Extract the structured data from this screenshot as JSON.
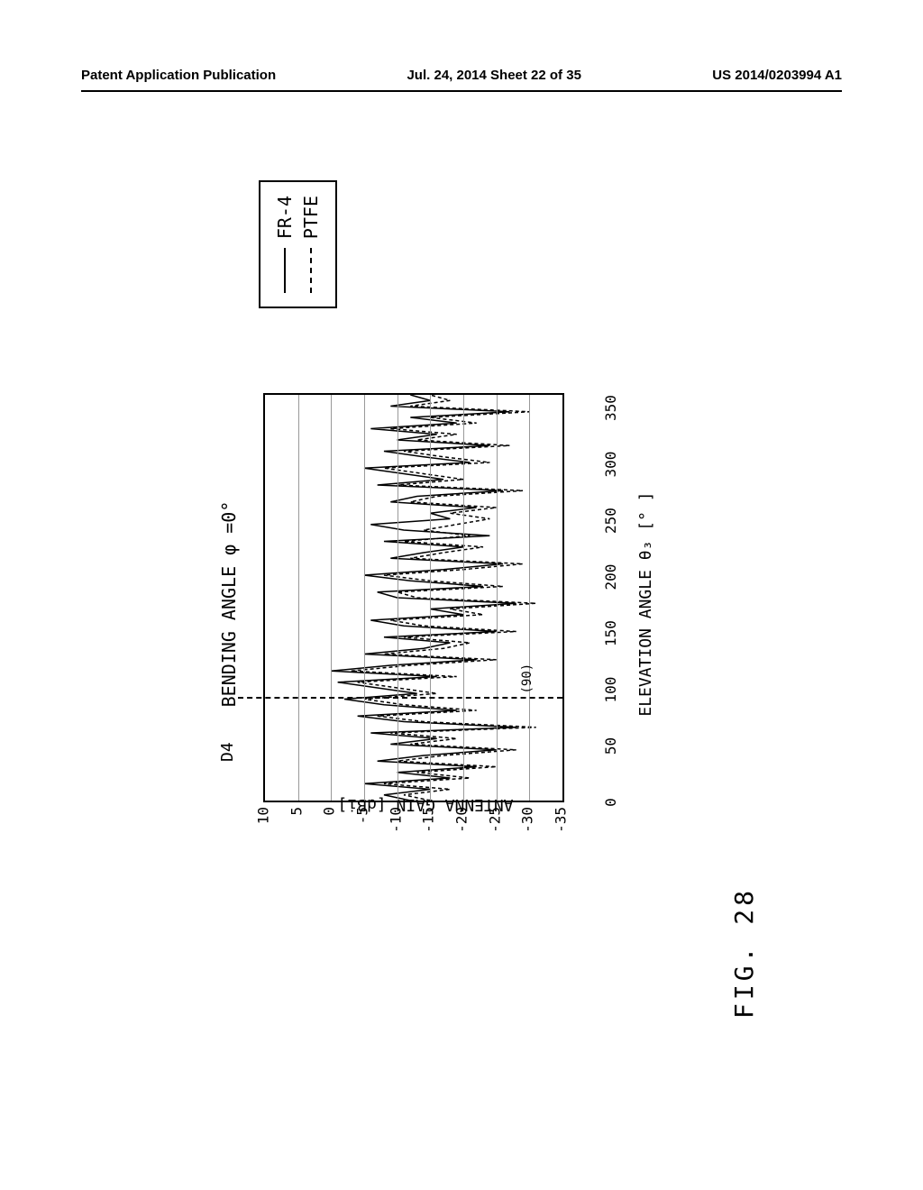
{
  "header": {
    "left": "Patent Application Publication",
    "center": "Jul. 24, 2014  Sheet 22 of 35",
    "right": "US 2014/0203994 A1"
  },
  "figure": {
    "label": "FIG. 28",
    "title": "BENDING ANGLE φ =0°",
    "d4_label": "D4",
    "marker_90": "(90)",
    "chart": {
      "type": "line",
      "ylabel": "ANTENNA GAIN [dBi]",
      "xlabel": "ELEVATION ANGLE θ₃ [° ]",
      "ylim": [
        -35,
        10
      ],
      "xlim": [
        0,
        360
      ],
      "yticks": [
        10,
        5,
        0,
        -5,
        -10,
        -15,
        -20,
        -25,
        -30,
        -35
      ],
      "xticks": [
        0,
        50,
        100,
        150,
        200,
        250,
        300,
        350
      ],
      "grid_color": "#999999",
      "background_color": "#ffffff",
      "border_color": "#000000",
      "d4_position": 90,
      "series": [
        {
          "name": "FR-4",
          "line_style": "solid",
          "color": "#000000",
          "x": [
            0,
            5,
            10,
            15,
            20,
            25,
            30,
            35,
            40,
            45,
            50,
            55,
            60,
            65,
            70,
            75,
            80,
            85,
            90,
            95,
            100,
            105,
            110,
            115,
            120,
            125,
            130,
            135,
            140,
            145,
            150,
            155,
            160,
            165,
            170,
            175,
            180,
            185,
            190,
            195,
            200,
            205,
            210,
            215,
            220,
            225,
            230,
            235,
            240,
            245,
            250,
            255,
            260,
            265,
            270,
            275,
            280,
            285,
            290,
            295,
            300,
            305,
            310,
            315,
            320,
            325,
            330,
            335,
            340,
            345,
            350,
            355,
            360
          ],
          "y": [
            -12,
            -8,
            -15,
            -5,
            -18,
            -10,
            -22,
            -7,
            -14,
            -25,
            -9,
            -16,
            -6,
            -28,
            -11,
            -4,
            -19,
            -8,
            -2,
            -13,
            -7,
            -1,
            -16,
            0,
            -9,
            -22,
            -5,
            -14,
            -18,
            -8,
            -25,
            -11,
            -6,
            -20,
            -15,
            -28,
            -10,
            -7,
            -23,
            -12,
            -5,
            -17,
            -26,
            -9,
            -14,
            -20,
            -8,
            -24,
            -11,
            -6,
            -18,
            -15,
            -22,
            -9,
            -13,
            -26,
            -7,
            -17,
            -11,
            -5,
            -21,
            -14,
            -8,
            -24,
            -10,
            -16,
            -6,
            -19,
            -12,
            -27,
            -9,
            -15,
            -12
          ]
        },
        {
          "name": "PTFE",
          "line_style": "dashed",
          "color": "#000000",
          "x": [
            0,
            5,
            10,
            15,
            20,
            25,
            30,
            35,
            40,
            45,
            50,
            55,
            60,
            65,
            70,
            75,
            80,
            85,
            90,
            95,
            100,
            105,
            110,
            115,
            120,
            125,
            130,
            135,
            140,
            145,
            150,
            155,
            160,
            165,
            170,
            175,
            180,
            185,
            190,
            195,
            200,
            205,
            210,
            215,
            220,
            225,
            230,
            235,
            240,
            245,
            250,
            255,
            260,
            265,
            270,
            275,
            280,
            285,
            290,
            295,
            300,
            305,
            310,
            315,
            320,
            325,
            330,
            335,
            340,
            345,
            350,
            355,
            360
          ],
          "y": [
            -15,
            -11,
            -18,
            -8,
            -21,
            -13,
            -25,
            -10,
            -17,
            -28,
            -12,
            -19,
            -9,
            -31,
            -14,
            -7,
            -22,
            -11,
            -5,
            -16,
            -10,
            -4,
            -19,
            -3,
            -12,
            -25,
            -8,
            -17,
            -21,
            -11,
            -28,
            -14,
            -9,
            -23,
            -18,
            -31,
            -13,
            -10,
            -26,
            -15,
            -8,
            -20,
            -29,
            -12,
            -17,
            -23,
            -11,
            -21,
            -14,
            -19,
            -24,
            -18,
            -25,
            -12,
            -16,
            -29,
            -10,
            -20,
            -14,
            -8,
            -24,
            -17,
            -11,
            -27,
            -13,
            -19,
            -9,
            -22,
            -15,
            -30,
            -12,
            -18,
            -15
          ]
        }
      ]
    },
    "legend": {
      "items": [
        {
          "label": "FR-4",
          "style": "solid"
        },
        {
          "label": "PTFE",
          "style": "dashed"
        }
      ]
    }
  }
}
